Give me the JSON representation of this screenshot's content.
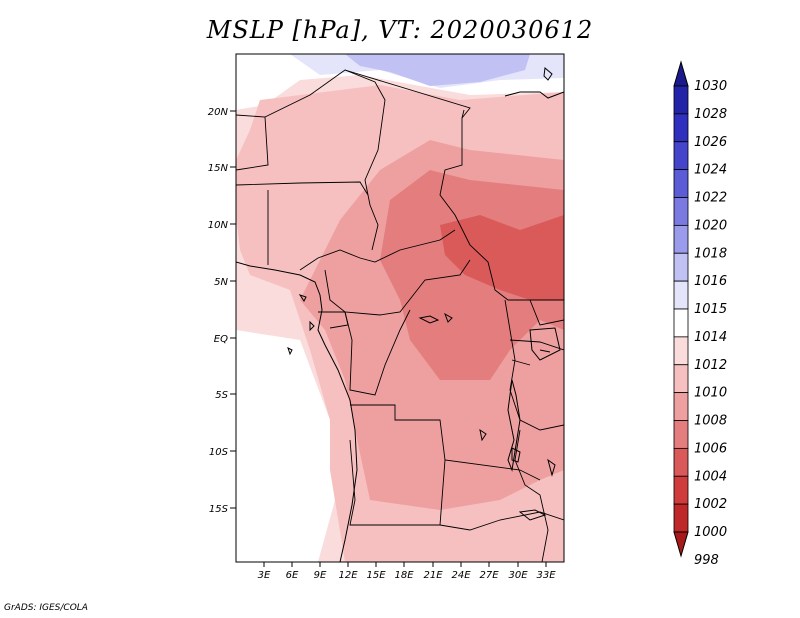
{
  "title": "MSLP [hPa], VT: 2020030612",
  "credit": "GrADS: IGES/COLA",
  "lat_labels": [
    "20N",
    "15N",
    "10N",
    "5N",
    "EQ",
    "5S",
    "10S",
    "15S"
  ],
  "lon_labels": [
    "3E",
    "6E",
    "9E",
    "12E",
    "15E",
    "18E",
    "21E",
    "24E",
    "27E",
    "30E",
    "33E"
  ],
  "colorbar": {
    "labels": [
      "1030",
      "1028",
      "1026",
      "1024",
      "1022",
      "1020",
      "1018",
      "1016",
      "1015",
      "1014",
      "1012",
      "1010",
      "1008",
      "1006",
      "1004",
      "1002",
      "1000",
      "998"
    ],
    "colors": [
      "#1a1a8c",
      "#2323a8",
      "#3030bf",
      "#4545cc",
      "#5c5cd6",
      "#7a7ae0",
      "#9b9bec",
      "#c1c1f4",
      "#e4e4fa",
      "#ffffff",
      "#fbdcdc",
      "#f6c0c0",
      "#eea0a0",
      "#e47e7e",
      "#da5a5a",
      "#d03c3c",
      "#bf2828",
      "#a81a1a"
    ]
  },
  "pressure_colors": {
    "p1016": "#c1c1f4",
    "p1015": "#e4e4fa",
    "p1014": "#ffffff",
    "p1012": "#fbdcdc",
    "p1010": "#f6c0c0",
    "p1008": "#eea0a0",
    "p1006": "#e47e7e",
    "p1004": "#da5a5a"
  }
}
